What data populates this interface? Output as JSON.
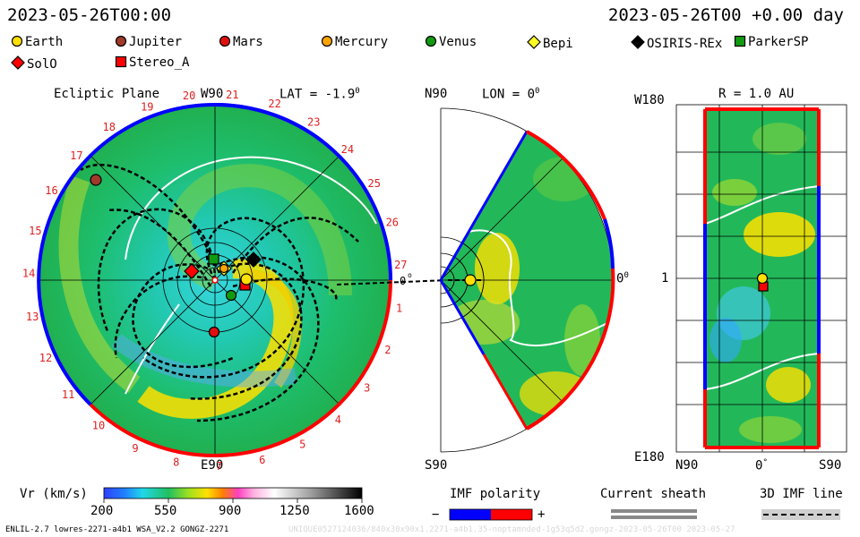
{
  "header": {
    "datetime_left": "2023-05-26T00:00",
    "datetime_right": "2023-05-26T00 +0.00 day"
  },
  "legend": [
    {
      "label": "Earth",
      "shape": "circle",
      "color": "#ffe000"
    },
    {
      "label": "Jupiter",
      "shape": "circle",
      "color": "#a03a2a"
    },
    {
      "label": "Mars",
      "shape": "circle",
      "color": "#e01010"
    },
    {
      "label": "Mercury",
      "shape": "circle",
      "color": "#ffa500"
    },
    {
      "label": "Venus",
      "shape": "circle",
      "color": "#109a10"
    },
    {
      "label": "Bepi",
      "shape": "diamond",
      "color": "#ffff20"
    },
    {
      "label": "OSIRIS-REx",
      "shape": "diamond",
      "color": "#000000"
    },
    {
      "label": "ParkerSP",
      "shape": "square",
      "color": "#109a10"
    },
    {
      "label": "SolO",
      "shape": "diamond",
      "color": "#ff0000"
    },
    {
      "label": "Stereo_A",
      "shape": "square",
      "color": "#ff0000"
    }
  ],
  "ecliptic_panel": {
    "title": "Ecliptic Plane",
    "top_label": "W90",
    "lat_label": "LAT = -1.9",
    "degree_mark": "0",
    "bottom_label": "E90",
    "right_angle_label": "0",
    "carrington_numbers": [
      "20",
      "21",
      "22",
      "23",
      "24",
      "25",
      "26",
      "27",
      "1",
      "2",
      "3",
      "4",
      "5",
      "6",
      "7",
      "8",
      "9",
      "10",
      "11",
      "12",
      "13",
      "14",
      "15",
      "16",
      "17",
      "18",
      "19"
    ]
  },
  "meridional_panel": {
    "top_label": "N90",
    "lon_label": "LON = 0",
    "degree_mark": "0",
    "bottom_label": "S90",
    "right_label": "0"
  },
  "radial_panel": {
    "title": "R = 1.0 AU",
    "top_left_label": "W180",
    "left_mid_label": "1",
    "bottom_left_label": "E180",
    "bottom_labels": [
      "N90",
      "0",
      "S90"
    ]
  },
  "colorbar": {
    "label": "Vr (km/s)",
    "ticks": [
      "200",
      "550",
      "900",
      "1250",
      "1600"
    ]
  },
  "imf_polarity": {
    "title": "IMF polarity",
    "minus": "−",
    "plus": "+",
    "neg_color": "#0000ff",
    "pos_color": "#ff0000"
  },
  "current_sheath": {
    "title": "Current sheath"
  },
  "imf_line": {
    "title": "3D IMF line"
  },
  "footer": {
    "left": "ENLIL-2.7 lowres-2271-a4b1 WSA_V2.2 GONGZ-2271",
    "right": "UNIQUE0527124036/840x30x90x1.2271-a4b1.35-noptamnded-1g53q5d2.gongz-2023-05-26T00 2023-05-27"
  }
}
